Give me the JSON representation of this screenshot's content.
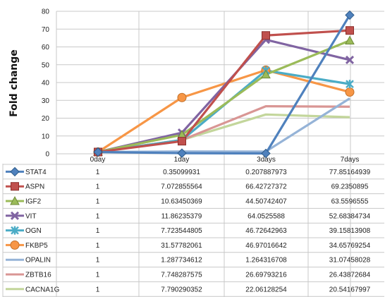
{
  "chart_data": {
    "type": "line",
    "ylabel": "Fold change",
    "ylim": [
      0,
      80
    ],
    "yticks": [
      0,
      10,
      20,
      30,
      40,
      50,
      60,
      70,
      80
    ],
    "categories": [
      "0day",
      "1day",
      "3days",
      "7days"
    ],
    "grid": true,
    "legend": "table below chart",
    "series": [
      {
        "name": "STAT4",
        "color": "#4f81bd",
        "marker": "diamond",
        "values": [
          1,
          0.35099931,
          0.207887973,
          77.85164939
        ],
        "labels": [
          "1",
          "0.35099931",
          "0.207887973",
          "77.85164939"
        ]
      },
      {
        "name": "ASPN",
        "color": "#c0504d",
        "marker": "square",
        "values": [
          1,
          7.072855564,
          66.42727372,
          69.2350895
        ],
        "labels": [
          "1",
          "7.072855564",
          "66.42727372",
          "69.2350895"
        ]
      },
      {
        "name": "IGF2",
        "color": "#9bbb59",
        "marker": "triangle",
        "values": [
          1,
          10.63450369,
          44.50742407,
          63.5596555
        ],
        "labels": [
          "1",
          "10.63450369",
          "44.50742407",
          "63.5596555"
        ]
      },
      {
        "name": "VIT",
        "color": "#8064a2",
        "marker": "x",
        "values": [
          1,
          11.86235379,
          64.0525588,
          52.68384734
        ],
        "labels": [
          "1",
          "11.86235379",
          "64.0525588",
          "52.68384734"
        ]
      },
      {
        "name": "OGN",
        "color": "#4bacc6",
        "marker": "star",
        "values": [
          1,
          7.723544805,
          46.72642963,
          39.15813908
        ],
        "labels": [
          "1",
          "7.723544805",
          "46.72642963",
          "39.15813908"
        ]
      },
      {
        "name": "FKBP5",
        "color": "#f79646",
        "marker": "circle",
        "values": [
          1,
          31.57782061,
          46.97016642,
          34.65769254
        ],
        "labels": [
          "1",
          "31.57782061",
          "46.97016642",
          "34.65769254"
        ]
      },
      {
        "name": "OPALIN",
        "color": "#95b3d7",
        "marker": "none",
        "values": [
          1,
          1.287734612,
          1.264316708,
          31.07458028
        ],
        "labels": [
          "1",
          "1.287734612",
          "1.264316708",
          "31.07458028"
        ]
      },
      {
        "name": "ZBTB16",
        "color": "#d99694",
        "marker": "none",
        "values": [
          1,
          7.748287575,
          26.69793216,
          26.43872684
        ],
        "labels": [
          "1",
          "7.748287575",
          "26.69793216",
          "26.43872684"
        ]
      },
      {
        "name": "CACNA1G",
        "color": "#c3d69b",
        "marker": "none",
        "values": [
          1,
          7.790290352,
          22.06128254,
          20.54167997
        ],
        "labels": [
          "1",
          "7.790290352",
          "22.06128254",
          "20.54167997"
        ]
      }
    ]
  }
}
